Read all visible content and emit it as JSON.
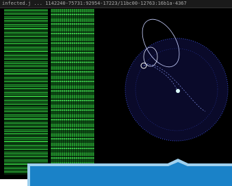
{
  "header": {
    "title": "infected.j ... 1142240-75731:92954-17223/11bc00-12763:16b1a-4367"
  }
}
